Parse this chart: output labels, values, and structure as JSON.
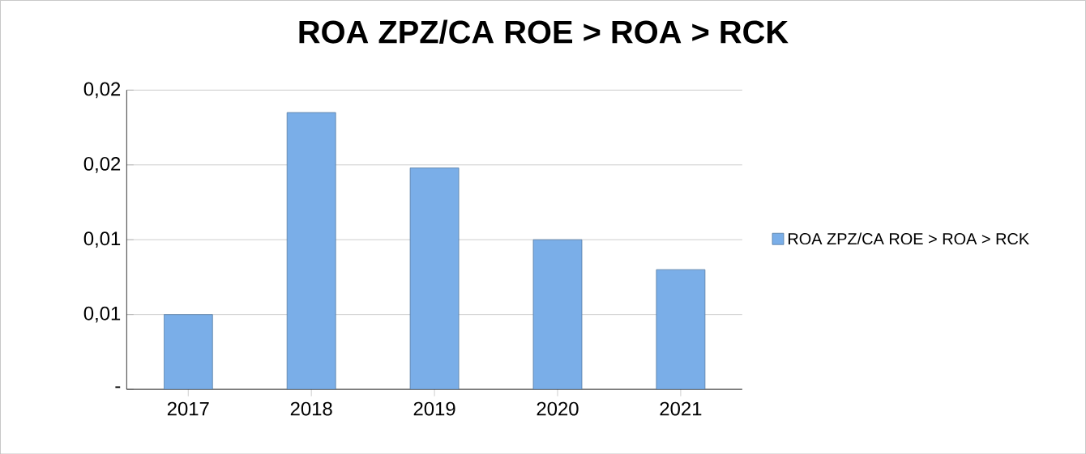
{
  "chart_data": {
    "type": "bar",
    "title": "ROA  ZPZ/CA ROE > ROA > RCK",
    "categories": [
      "2017",
      "2018",
      "2019",
      "2020",
      "2021"
    ],
    "series": [
      {
        "name": "ROA  ZPZ/CA ROE > ROA > RCK",
        "color": "#7aaee8",
        "values": [
          0.005,
          0.0185,
          0.0148,
          0.01,
          0.008
        ]
      }
    ],
    "ylim": [
      0,
      0.02
    ],
    "yticks": [
      {
        "value": 0,
        "label": "-"
      },
      {
        "value": 0.005,
        "label": "0,01"
      },
      {
        "value": 0.01,
        "label": "0,01"
      },
      {
        "value": 0.015,
        "label": "0,02"
      },
      {
        "value": 0.02,
        "label": "0,02"
      }
    ],
    "grid": "y",
    "legend": "right"
  }
}
